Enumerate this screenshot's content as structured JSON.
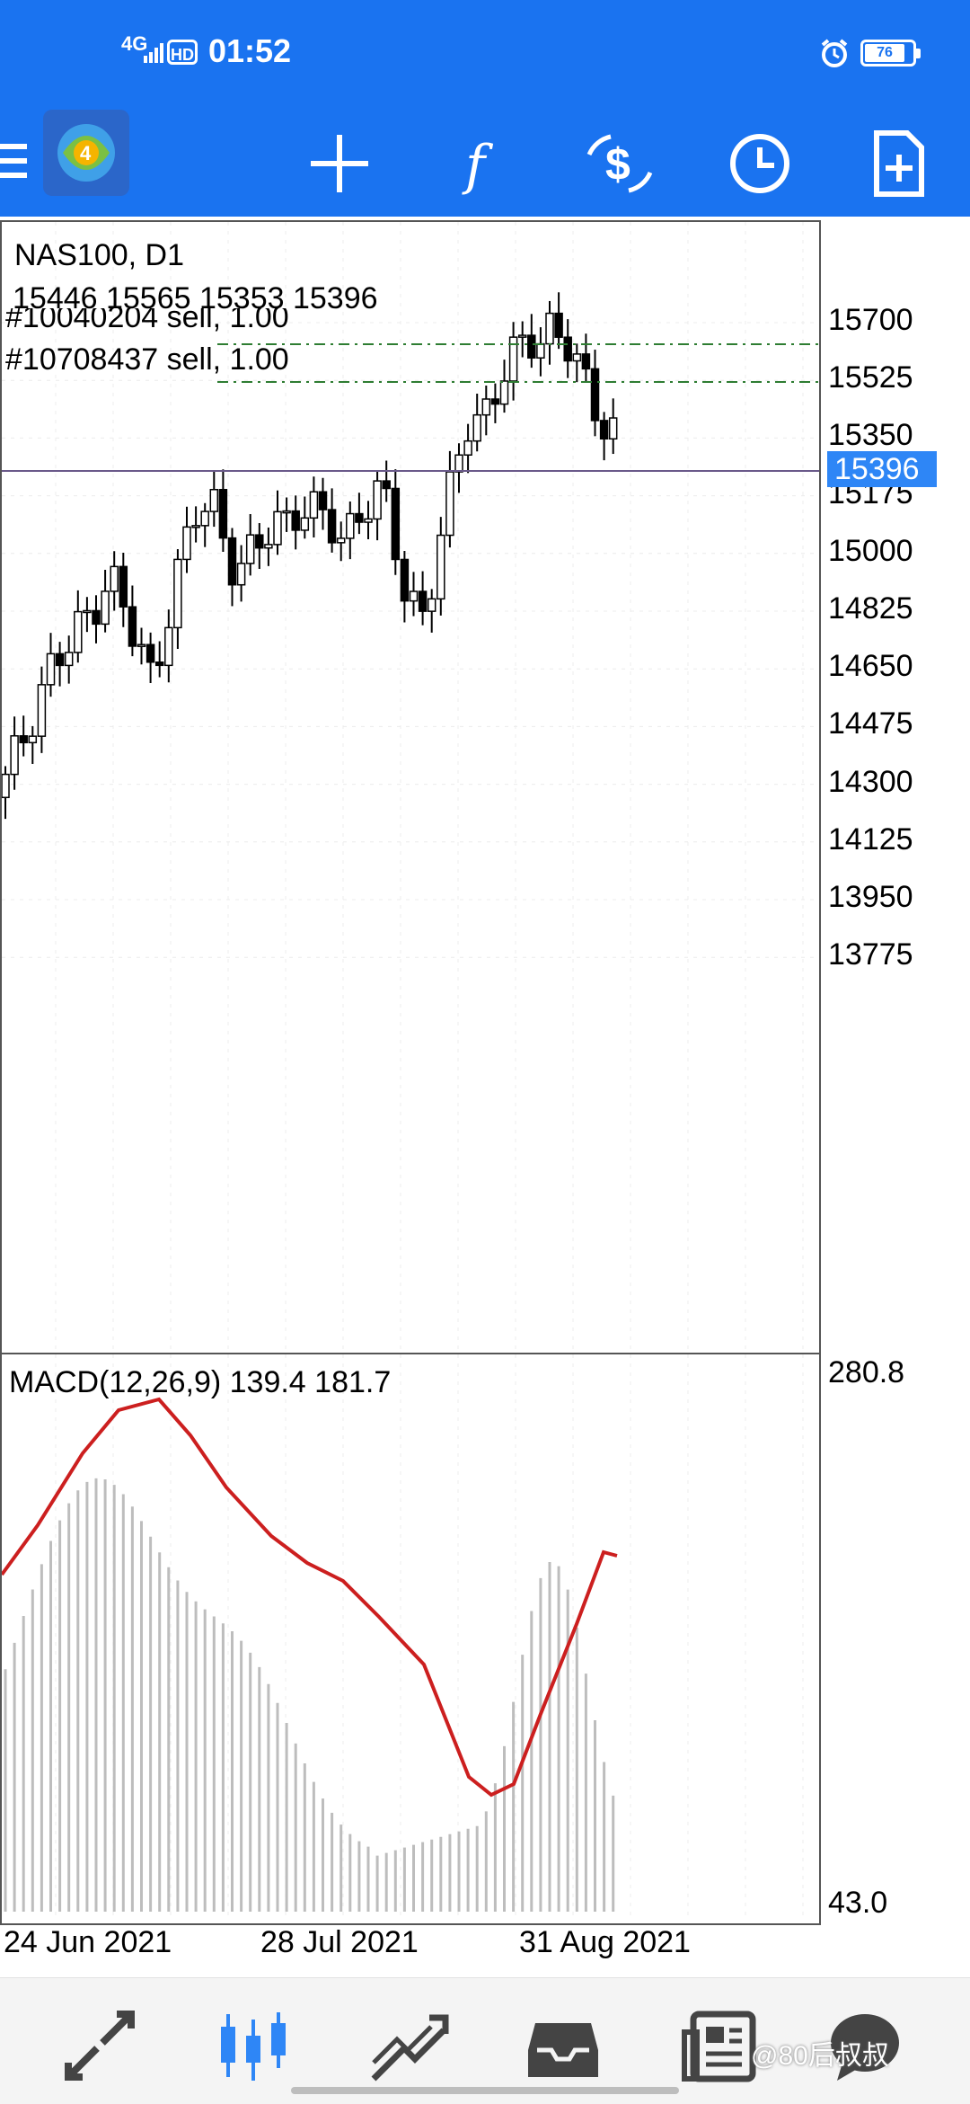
{
  "status_bar": {
    "network": "4G",
    "hd": "HD",
    "time": "01:52",
    "battery": "76"
  },
  "toolbar": {
    "icons": [
      "menu-icon",
      "app-logo-icon",
      "crosshair-icon",
      "function-icon",
      "trade-icon",
      "timeframe-icon",
      "new-order-icon"
    ]
  },
  "chart": {
    "symbol_label": "NAS100, D1",
    "ohlc_label": "15446 15565 15353 15396",
    "order_1": "#10040204 sell, 1.00",
    "order_2": "#10708437 sell, 1.00",
    "current_price": "15396",
    "y_ticks": [
      "15700",
      "15525",
      "15350",
      "15175",
      "15000",
      "14825",
      "14650",
      "14475",
      "14300",
      "14125",
      "13950",
      "13775"
    ],
    "colors": {
      "bull": "#ffffff",
      "bear": "#000000",
      "order_line": "#2e7d32",
      "price_line": "#6a5a8a"
    }
  },
  "macd": {
    "label": "MACD(12,26,9) 139.4 181.7",
    "y_max_label": "280.8",
    "y_min_label": "43.0",
    "signal_color": "#cc1f1f"
  },
  "x_ticks": [
    "24 Jun 2021",
    "28 Jul 2021",
    "31 Aug 2021"
  ],
  "bottom_nav": {
    "items": [
      "quotes-icon",
      "chart-icon",
      "trade-icon",
      "history-icon",
      "news-icon",
      "chat-icon"
    ],
    "active": "chart-icon"
  },
  "watermark": "@80后叔叔",
  "chart_data": {
    "type": "line",
    "x": [
      "24 Jun 2021",
      "28 Jul 2021",
      "31 Aug 2021"
    ],
    "candles_close": [
      14300,
      14470,
      14650,
      14700,
      14825,
      14950,
      14750,
      14620,
      14900,
      15100,
      15150,
      14950,
      15000,
      15100,
      15150,
      15100,
      15050,
      15150,
      15175,
      14900,
      14825,
      15100,
      15400,
      15450,
      15560,
      15650,
      15700,
      15600,
      15450,
      15396
    ],
    "y_range": [
      13775,
      15700
    ],
    "macd_range": [
      43.0,
      280.8
    ],
    "last_values": {
      "macd": 139.4,
      "signal": 181.7,
      "price": 15396
    }
  }
}
